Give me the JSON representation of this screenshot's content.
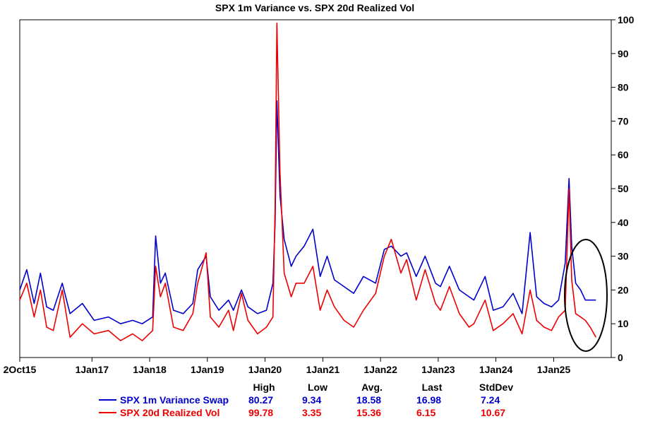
{
  "chart_data": {
    "type": "line",
    "title": "SPX 1m Variance vs. SPX 20d Realized Vol",
    "x_tick_labels": [
      "2Oct15",
      "1Jan17",
      "1Jan18",
      "1Jan19",
      "1Jan20",
      "1Jan21",
      "1Jan22",
      "1Jan23",
      "1Jan24",
      "1Jan25"
    ],
    "x_ticks": [
      "2015-10-02",
      "2017-01-01",
      "2018-01-01",
      "2019-01-01",
      "2020-01-01",
      "2021-01-01",
      "2022-01-01",
      "2023-01-01",
      "2024-01-01",
      "2025-01-01"
    ],
    "xlim": [
      "2015-10-02",
      "2025-12-31"
    ],
    "ylim": [
      0,
      100
    ],
    "y_ticks": [
      0,
      10,
      20,
      30,
      40,
      50,
      60,
      70,
      80,
      90,
      100
    ],
    "y_axis_side": "right",
    "grid": false,
    "series": [
      {
        "name": "SPX 1m Variance Swap",
        "color": "#0000cc",
        "x": [
          "2015-10-02",
          "2015-11-15",
          "2016-01-01",
          "2016-02-10",
          "2016-03-20",
          "2016-05-01",
          "2016-06-27",
          "2016-08-15",
          "2016-11-01",
          "2017-01-15",
          "2017-04-15",
          "2017-07-01",
          "2017-09-15",
          "2017-11-15",
          "2018-01-20",
          "2018-02-08",
          "2018-03-10",
          "2018-04-10",
          "2018-06-01",
          "2018-08-01",
          "2018-10-01",
          "2018-11-01",
          "2018-12-24",
          "2019-01-20",
          "2019-03-15",
          "2019-05-15",
          "2019-06-15",
          "2019-08-05",
          "2019-09-15",
          "2019-11-15",
          "2020-01-10",
          "2020-02-20",
          "2020-03-05",
          "2020-03-16",
          "2020-04-05",
          "2020-05-01",
          "2020-06-15",
          "2020-07-15",
          "2020-09-05",
          "2020-10-30",
          "2020-12-15",
          "2021-01-28",
          "2021-03-15",
          "2021-05-15",
          "2021-07-15",
          "2021-09-15",
          "2021-12-01",
          "2022-01-25",
          "2022-03-10",
          "2022-05-10",
          "2022-06-15",
          "2022-08-15",
          "2022-10-10",
          "2022-12-15",
          "2023-01-15",
          "2023-03-13",
          "2023-05-15",
          "2023-07-15",
          "2023-08-15",
          "2023-10-25",
          "2023-12-15",
          "2024-02-15",
          "2024-04-19",
          "2024-06-15",
          "2024-08-05",
          "2024-09-15",
          "2024-11-01",
          "2024-12-18",
          "2025-02-01",
          "2025-03-15",
          "2025-04-08",
          "2025-04-25",
          "2025-05-20",
          "2025-06-20",
          "2025-07-20",
          "2025-08-20",
          "2025-09-25"
        ],
        "y": [
          20,
          26,
          16,
          25,
          15,
          14,
          22,
          13,
          16,
          11,
          12,
          10,
          11,
          10,
          12,
          36,
          22,
          25,
          14,
          13,
          16,
          26,
          30,
          18,
          14,
          17,
          14,
          20,
          15,
          13,
          14,
          22,
          40,
          76,
          48,
          35,
          27,
          30,
          33,
          38,
          24,
          30,
          23,
          21,
          19,
          24,
          22,
          32,
          33,
          30,
          31,
          24,
          30,
          22,
          21,
          27,
          20,
          18,
          17,
          24,
          14,
          15,
          19,
          13,
          37,
          18,
          16,
          15,
          17,
          28,
          53,
          33,
          22,
          20,
          17,
          17,
          17
        ]
      },
      {
        "name": "SPX 20d Realized Vol",
        "color": "#ee0000",
        "x": [
          "2015-10-02",
          "2015-11-15",
          "2016-01-01",
          "2016-02-10",
          "2016-03-20",
          "2016-05-01",
          "2016-06-27",
          "2016-08-15",
          "2016-11-01",
          "2017-01-15",
          "2017-04-15",
          "2017-07-01",
          "2017-09-15",
          "2017-11-15",
          "2018-01-20",
          "2018-02-08",
          "2018-03-10",
          "2018-04-10",
          "2018-06-01",
          "2018-08-01",
          "2018-10-01",
          "2018-11-01",
          "2018-12-24",
          "2019-01-20",
          "2019-03-15",
          "2019-05-15",
          "2019-06-15",
          "2019-08-05",
          "2019-09-15",
          "2019-11-15",
          "2020-01-10",
          "2020-02-20",
          "2020-03-05",
          "2020-03-16",
          "2020-04-05",
          "2020-05-01",
          "2020-06-15",
          "2020-07-15",
          "2020-09-05",
          "2020-10-30",
          "2020-12-15",
          "2021-01-28",
          "2021-03-15",
          "2021-05-15",
          "2021-07-15",
          "2021-09-15",
          "2021-12-01",
          "2022-01-25",
          "2022-03-10",
          "2022-05-10",
          "2022-06-15",
          "2022-08-15",
          "2022-10-10",
          "2022-12-15",
          "2023-01-15",
          "2023-03-13",
          "2023-05-15",
          "2023-07-15",
          "2023-08-15",
          "2023-10-25",
          "2023-12-15",
          "2024-02-15",
          "2024-04-19",
          "2024-06-15",
          "2024-08-05",
          "2024-09-15",
          "2024-11-01",
          "2024-12-18",
          "2025-02-01",
          "2025-03-15",
          "2025-04-08",
          "2025-04-25",
          "2025-05-20",
          "2025-06-20",
          "2025-07-20",
          "2025-08-20",
          "2025-09-25"
        ],
        "y": [
          17,
          22,
          12,
          20,
          9,
          8,
          20,
          6,
          10,
          7,
          8,
          5,
          7,
          5,
          8,
          27,
          18,
          22,
          9,
          8,
          13,
          22,
          31,
          12,
          9,
          14,
          8,
          19,
          11,
          7,
          9,
          12,
          45,
          99,
          55,
          25,
          18,
          22,
          22,
          27,
          14,
          20,
          15,
          11,
          9,
          14,
          19,
          30,
          35,
          25,
          29,
          17,
          26,
          16,
          14,
          21,
          13,
          9,
          10,
          17,
          8,
          10,
          13,
          7,
          20,
          11,
          9,
          8,
          12,
          14,
          50,
          23,
          13,
          12,
          11,
          9,
          6
        ]
      }
    ],
    "stats": {
      "headers": [
        "High",
        "Low",
        "Avg.",
        "Last",
        "StdDev"
      ],
      "rows": [
        {
          "series": "SPX 1m Variance Swap",
          "values": [
            "80.27",
            "9.34",
            "18.58",
            "16.98",
            "7.24"
          ]
        },
        {
          "series": "SPX 20d Realized Vol",
          "values": [
            "99.78",
            "3.35",
            "15.36",
            "6.15",
            "10.67"
          ]
        }
      ]
    },
    "annotation": {
      "shape": "ellipse",
      "around": "2025 recent period",
      "x_center": "2025-06-01",
      "y_center": 20,
      "y_span": [
        0,
        35
      ]
    }
  }
}
